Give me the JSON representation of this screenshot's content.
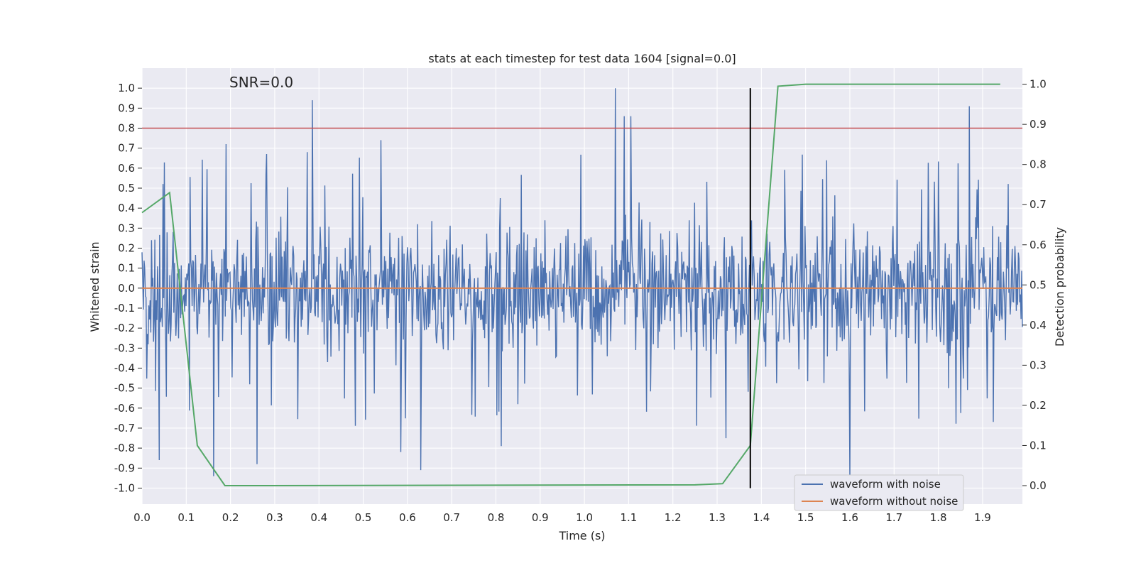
{
  "chart_data": {
    "type": "line",
    "title": "stats at each timestep for test data 1604 [signal=0.0]",
    "xlabel": "Time (s)",
    "ylabel": "Whitened strain",
    "ylabel_right": "Detection probability",
    "annotation": "SNR=0.0",
    "xlim": [
      0.0,
      1.99
    ],
    "ylim": [
      -1.08,
      1.1
    ],
    "ylim_right": [
      -0.046,
      1.04
    ],
    "xticks": [
      "0.0",
      "0.1",
      "0.2",
      "0.3",
      "0.4",
      "0.5",
      "0.6",
      "0.7",
      "0.8",
      "0.9",
      "1.0",
      "1.1",
      "1.2",
      "1.3",
      "1.4",
      "1.5",
      "1.6",
      "1.7",
      "1.8",
      "1.9"
    ],
    "yticks": [
      "1.0",
      "0.9",
      "0.8",
      "0.7",
      "0.6",
      "0.5",
      "0.4",
      "0.3",
      "0.2",
      "0.1",
      "0.0",
      "-0.1",
      "-0.2",
      "-0.3",
      "-0.4",
      "-0.5",
      "-0.6",
      "-0.7",
      "-0.8",
      "-0.9",
      "-1.0"
    ],
    "yticks_right": [
      "1.0",
      "0.9",
      "0.8",
      "0.7",
      "0.6",
      "0.5",
      "0.4",
      "0.3",
      "0.2",
      "0.1",
      "0.0"
    ],
    "threshold_line": {
      "y": 0.8,
      "color": "#c44e52"
    },
    "vertical_marker": {
      "x": 1.375,
      "y_range": [
        -1.0,
        1.0
      ],
      "color": "#000000"
    },
    "series": [
      {
        "name": "waveform with noise",
        "color": "#4c72b0",
        "kind": "noise",
        "spike_points": [
          {
            "x": 0.039,
            "y": -0.86
          },
          {
            "x": 0.385,
            "y": 0.94
          },
          {
            "x": 0.63,
            "y": -0.91
          },
          {
            "x": 1.07,
            "y": 1.0
          },
          {
            "x": 1.09,
            "y": 0.86
          },
          {
            "x": 1.105,
            "y": 0.86
          },
          {
            "x": 1.6,
            "y": -0.97
          },
          {
            "x": 1.87,
            "y": 0.91
          },
          {
            "x": 0.26,
            "y": -0.88
          },
          {
            "x": 0.162,
            "y": -0.94
          },
          {
            "x": 0.19,
            "y": 0.72
          },
          {
            "x": 0.54,
            "y": 0.74
          },
          {
            "x": 1.32,
            "y": -0.75
          },
          {
            "x": 0.585,
            "y": -0.82
          },
          {
            "x": 0.812,
            "y": -0.79
          }
        ]
      },
      {
        "name": "waveform without noise",
        "color": "#dd8452",
        "x": [
          0.0,
          1.99
        ],
        "y": [
          0.0,
          0.0
        ]
      },
      {
        "name": "Detection probability",
        "axis": "right",
        "color": "#55a868",
        "x": [
          0.0,
          0.0625,
          0.125,
          0.1875,
          0.25,
          1.25,
          1.3125,
          1.375,
          1.4375,
          1.5,
          1.94
        ],
        "y": [
          0.68,
          0.73,
          0.1,
          0.0,
          0.0,
          0.002,
          0.005,
          0.1,
          0.995,
          1.0,
          1.0
        ]
      }
    ],
    "legend": [
      "waveform with noise",
      "waveform without noise"
    ],
    "legend_position": "lower right",
    "grid": true,
    "background": "#eaeaf2"
  }
}
